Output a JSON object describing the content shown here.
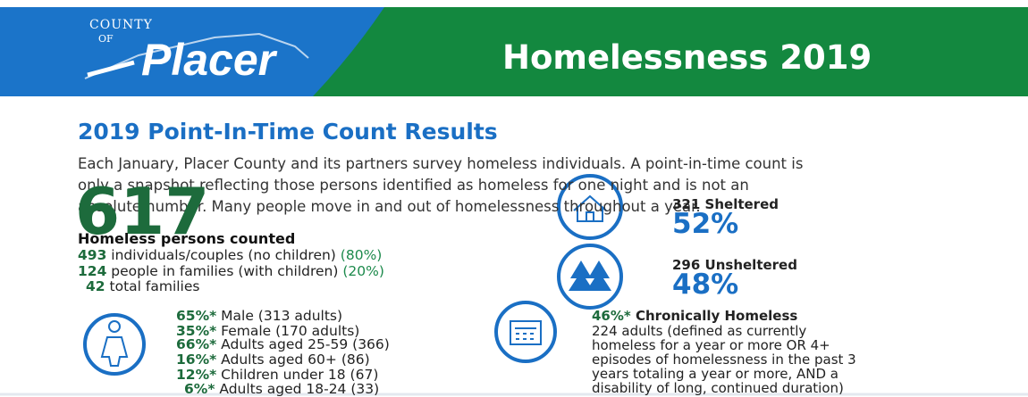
{
  "header": {
    "logo_county": "COUNTY",
    "logo_of": "OF",
    "logo_name": "Placer",
    "title": "Homelessness 2019"
  },
  "section_title": "2019 Point-In-Time Count Results",
  "intro_lines": [
    "Each January, Placer County and its partners survey homeless individuals. A point-in-time count is",
    "only a snapshot reflecting those persons identified as homeless for one night and is not an",
    "absolute number. Many people move in and out of homelessness throughout a year."
  ],
  "total": {
    "number": "617",
    "label": "Homeless persons counted"
  },
  "breakdown": [
    {
      "count": "493",
      "text": "individuals/couples (no children)",
      "pct": "(80%)"
    },
    {
      "count": "124",
      "text": "people in families (with children)",
      "pct": "(20%)"
    },
    {
      "count": "42",
      "text": "total families"
    }
  ],
  "gender": [
    {
      "pct": "65%*",
      "text": "Male (313 adults)"
    },
    {
      "pct": "35%*",
      "text": "Female (170 adults)"
    }
  ],
  "ages": [
    {
      "pct": "66%*",
      "text": "Adults aged 25-59 (366)"
    },
    {
      "pct": "16%*",
      "text": "Adults aged 60+ (86)"
    },
    {
      "pct": "12%*",
      "text": "Children under 18 (67)"
    },
    {
      "pct": "6%*",
      "text": "Adults aged 18-24 (33)"
    }
  ],
  "shelter": [
    {
      "label": "321 Sheltered",
      "pct": "52%"
    },
    {
      "label": "296 Unsheltered",
      "pct": "48%"
    }
  ],
  "chronic": {
    "pct": "46%*",
    "label": "Chronically Homeless",
    "lines": [
      "224 adults (defined as currently",
      "homeless for a year or more OR 4+",
      "episodes of homelessness in the past 3",
      "years totaling a year or more, AND a",
      "disability of long, continued duration)"
    ]
  }
}
